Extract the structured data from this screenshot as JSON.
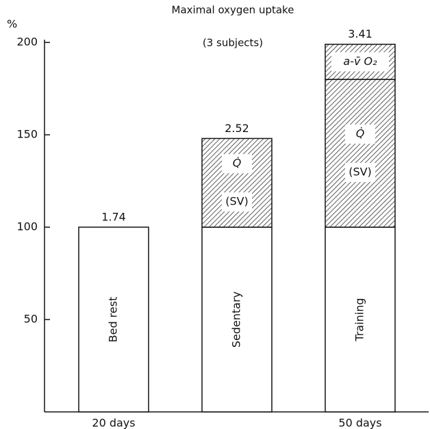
{
  "chart_data": {
    "type": "stacked_bar",
    "title": "Maximal oxygen uptake",
    "subtitle": "(3 subjects)",
    "ylabel": "%",
    "categories": [
      "20 days",
      null,
      "50 days"
    ],
    "bar_labels": [
      "Bed rest",
      "Sedentary",
      "Training"
    ],
    "top_labels": [
      "1.74",
      "2.52",
      "3.41"
    ],
    "series": [
      {
        "values": [
          100,
          100,
          100
        ],
        "color": "#ffffff",
        "hatch": false
      },
      {
        "label_lines": [
          "Q̇",
          "(SV)"
        ],
        "values": [
          0,
          48,
          80
        ],
        "color": "#ffffff",
        "hatch": true
      },
      {
        "name": "a-v̄ O₂",
        "values": [
          0,
          0,
          19
        ],
        "color": "#ffffff",
        "hatch": true
      }
    ],
    "ylim": [
      0,
      200
    ],
    "yticks": [
      50,
      100,
      150,
      200
    ]
  }
}
